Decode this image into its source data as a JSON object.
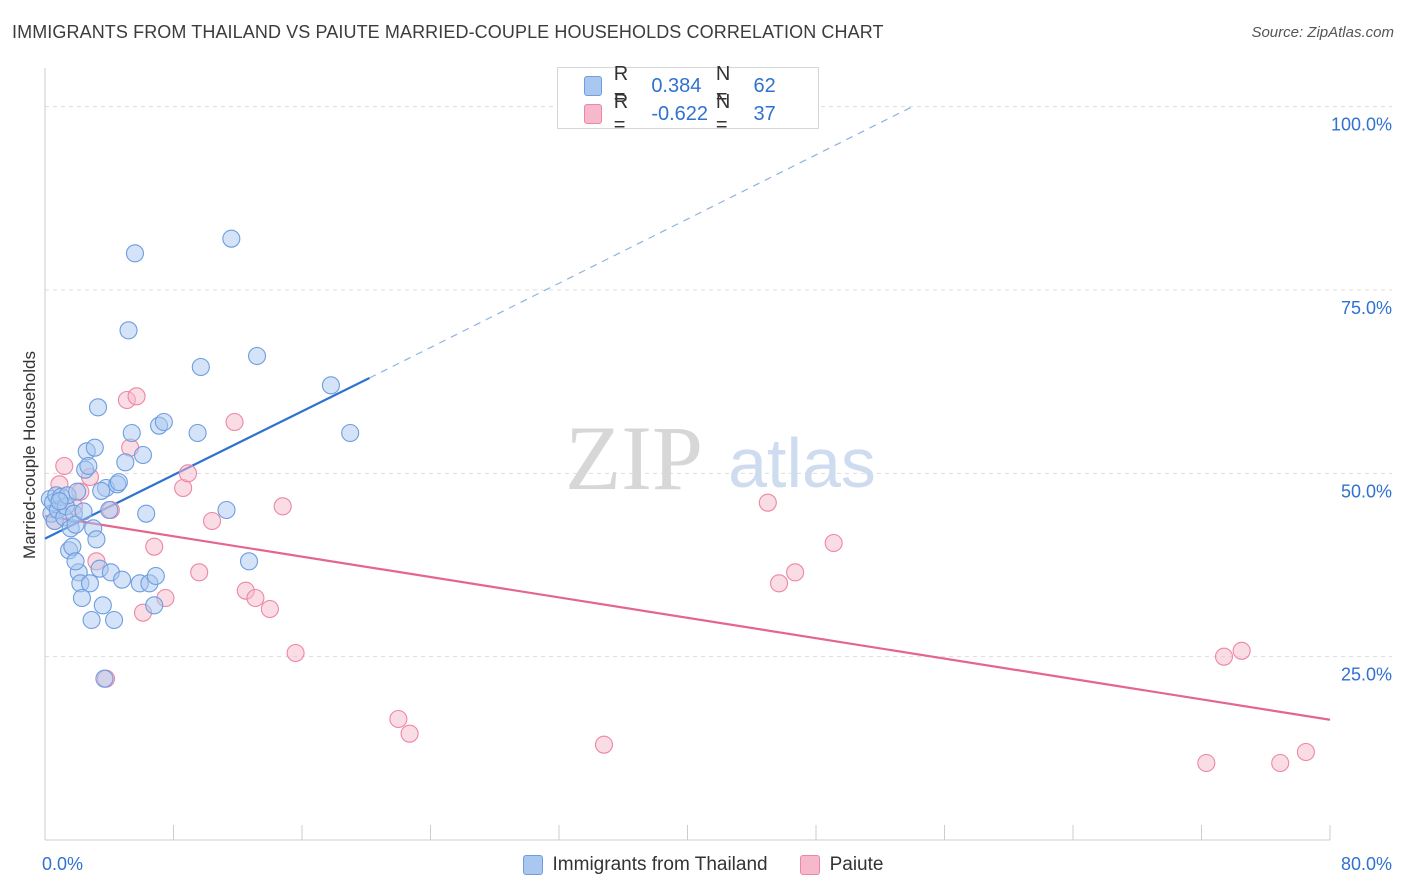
{
  "title": "IMMIGRANTS FROM THAILAND VS PAIUTE MARRIED-COUPLE HOUSEHOLDS CORRELATION CHART",
  "source": "Source: ZipAtlas.com",
  "watermark": {
    "zip": "ZIP",
    "atlas": "atlas"
  },
  "legend": {
    "r_label": "R =",
    "n_label": "N =",
    "thailand": {
      "r": "0.384",
      "n": "62",
      "color": "#a9c7ef",
      "stroke": "#6d9ee0"
    },
    "paiute": {
      "r": "-0.622",
      "n": "37",
      "color": "#f6b9cc",
      "stroke": "#ee86a5"
    }
  },
  "colors": {
    "thailand_line": "#2f72cf",
    "paiute_line": "#e4668f",
    "value_text": "#2f72cf",
    "grid": "#dddddd"
  },
  "chart_data": {
    "type": "scatter",
    "xlabel": "",
    "ylabel": "Married-couple Households",
    "xlim": [
      0,
      80
    ],
    "ylim": [
      0,
      105
    ],
    "x_tick_labels": [
      "0.0%",
      "80.0%"
    ],
    "y_tick_labels": [
      "100.0%",
      "75.0%",
      "50.0%",
      "25.0%"
    ],
    "y_ticks": [
      100,
      75,
      50,
      25
    ],
    "grid": true,
    "series": [
      {
        "name": "Immigrants from Thailand",
        "trend": {
          "x": [
            0,
            20.2
          ],
          "y": [
            41.1,
            63.0
          ],
          "dashed_to": [
            54,
            100
          ]
        },
        "points": [
          [
            0.3,
            46.5
          ],
          [
            0.4,
            44.5
          ],
          [
            0.5,
            46.0
          ],
          [
            0.6,
            43.5
          ],
          [
            0.7,
            47.0
          ],
          [
            0.8,
            45.0
          ],
          [
            1.0,
            46.8
          ],
          [
            1.2,
            44.0
          ],
          [
            1.3,
            45.5
          ],
          [
            1.4,
            47.0
          ],
          [
            1.5,
            39.5
          ],
          [
            1.6,
            42.5
          ],
          [
            1.7,
            40.0
          ],
          [
            1.8,
            44.5
          ],
          [
            1.9,
            43.0
          ],
          [
            2.0,
            47.5
          ],
          [
            2.1,
            36.5
          ],
          [
            2.2,
            35.0
          ],
          [
            2.3,
            33.0
          ],
          [
            2.5,
            50.5
          ],
          [
            2.6,
            53.0
          ],
          [
            2.7,
            51.0
          ],
          [
            2.8,
            35.0
          ],
          [
            2.9,
            30.0
          ],
          [
            3.0,
            42.5
          ],
          [
            3.1,
            53.5
          ],
          [
            3.2,
            41.0
          ],
          [
            3.3,
            59.0
          ],
          [
            3.4,
            37.0
          ],
          [
            3.6,
            32.0
          ],
          [
            3.8,
            48.0
          ],
          [
            4.0,
            45.0
          ],
          [
            4.1,
            36.5
          ],
          [
            4.3,
            30.0
          ],
          [
            4.5,
            48.5
          ],
          [
            4.6,
            48.8
          ],
          [
            4.8,
            35.5
          ],
          [
            5.0,
            51.5
          ],
          [
            5.2,
            69.5
          ],
          [
            5.4,
            55.5
          ],
          [
            5.6,
            80.0
          ],
          [
            5.9,
            35.0
          ],
          [
            6.1,
            52.5
          ],
          [
            6.3,
            44.5
          ],
          [
            6.5,
            35.0
          ],
          [
            6.8,
            32.0
          ],
          [
            6.9,
            36.0
          ],
          [
            7.1,
            56.5
          ],
          [
            7.4,
            57.0
          ],
          [
            9.5,
            55.5
          ],
          [
            9.7,
            64.5
          ],
          [
            11.3,
            45.0
          ],
          [
            11.6,
            82.0
          ],
          [
            12.7,
            38.0
          ],
          [
            13.2,
            66.0
          ],
          [
            17.8,
            62.0
          ],
          [
            19.0,
            55.5
          ],
          [
            3.7,
            22.0
          ],
          [
            1.9,
            38.0
          ],
          [
            0.9,
            46.2
          ],
          [
            2.4,
            44.8
          ],
          [
            3.5,
            47.6
          ]
        ]
      },
      {
        "name": "Paiute",
        "trend": {
          "x": [
            0,
            80
          ],
          "y": [
            44.2,
            16.4
          ]
        },
        "points": [
          [
            0.6,
            43.5
          ],
          [
            0.9,
            48.5
          ],
          [
            1.2,
            51.0
          ],
          [
            1.8,
            45.5
          ],
          [
            2.2,
            47.5
          ],
          [
            2.8,
            49.5
          ],
          [
            3.2,
            38.0
          ],
          [
            3.8,
            22.0
          ],
          [
            4.1,
            45.0
          ],
          [
            5.1,
            60.0
          ],
          [
            5.3,
            53.5
          ],
          [
            5.7,
            60.5
          ],
          [
            6.1,
            31.0
          ],
          [
            6.8,
            40.0
          ],
          [
            7.5,
            33.0
          ],
          [
            8.6,
            48.0
          ],
          [
            8.9,
            50.0
          ],
          [
            9.6,
            36.5
          ],
          [
            10.4,
            43.5
          ],
          [
            11.8,
            57.0
          ],
          [
            12.5,
            34.0
          ],
          [
            13.1,
            33.0
          ],
          [
            14.0,
            31.5
          ],
          [
            14.8,
            45.5
          ],
          [
            15.6,
            25.5
          ],
          [
            22.0,
            16.5
          ],
          [
            22.7,
            14.5
          ],
          [
            34.8,
            13.0
          ],
          [
            45.0,
            46.0
          ],
          [
            45.7,
            35.0
          ],
          [
            46.7,
            36.5
          ],
          [
            49.1,
            40.5
          ],
          [
            72.3,
            10.5
          ],
          [
            73.4,
            25.0
          ],
          [
            74.5,
            25.8
          ],
          [
            76.9,
            10.5
          ],
          [
            78.5,
            12.0
          ]
        ]
      }
    ]
  }
}
